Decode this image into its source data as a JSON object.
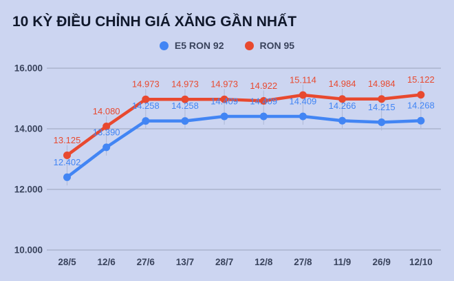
{
  "title": "10 KỲ ĐIỀU CHỈNH GIÁ XĂNG GẦN NHẤT",
  "legend": {
    "items": [
      {
        "label": "E5 RON 92",
        "color": "#4285f4"
      },
      {
        "label": "RON 95",
        "color": "#e8492f"
      }
    ]
  },
  "chart_data": {
    "type": "line",
    "title": "10 KỲ ĐIỀU CHỈNH GIÁ XĂNG GẦN NHẤT",
    "categories": [
      "28/5",
      "12/6",
      "27/6",
      "13/7",
      "28/7",
      "12/8",
      "27/8",
      "11/9",
      "26/9",
      "12/10"
    ],
    "series": [
      {
        "name": "E5 RON 92",
        "color": "#4285f4",
        "values": [
          12402,
          13390,
          14258,
          14258,
          14409,
          14409,
          14409,
          14266,
          14215,
          14268
        ],
        "labels": [
          "12.402",
          "13.390",
          "14.258",
          "14.258",
          "14.409",
          "14.409",
          "14.409",
          "14.266",
          "14.215",
          "14.268"
        ]
      },
      {
        "name": "RON 95",
        "color": "#e8492f",
        "values": [
          13125,
          14080,
          14973,
          14973,
          14973,
          14922,
          15114,
          14984,
          14984,
          15122
        ],
        "labels": [
          "13.125",
          "14.080",
          "14.973",
          "14.973",
          "14.973",
          "14.922",
          "15.114",
          "14.984",
          "14.984",
          "15.122"
        ]
      }
    ],
    "ylim": [
      10000,
      16000
    ],
    "y_ticks": [
      10000,
      12000,
      14000,
      16000
    ],
    "y_tick_labels": [
      "10.000",
      "12.000",
      "14.000",
      "16.000"
    ],
    "xlabel": "",
    "ylabel": "",
    "grid": true,
    "legend_position": "top",
    "data_labels": true
  },
  "colors": {
    "background": "#ccd5f1",
    "title_text": "#10182b",
    "axis_text": "#39435c",
    "gridline": "#9aa3ba",
    "column_stem": "#aeb8d6"
  }
}
